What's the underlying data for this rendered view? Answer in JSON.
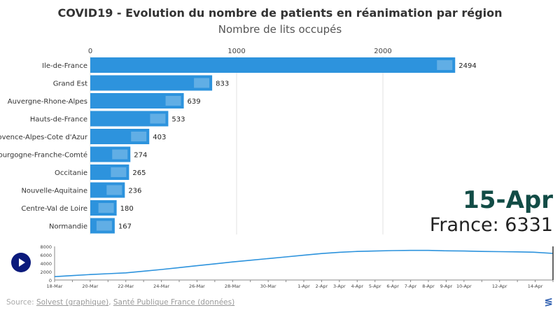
{
  "chart_data": [
    {
      "type": "bar",
      "title": "COVID19 - Evolution du nombre de patients en réanimation par région",
      "subtitle": "Nombre de lits occupés",
      "categories": [
        "Ile-de-France",
        "Grand Est",
        "Auvergne-Rhone-Alpes",
        "Hauts-de-France",
        "Provence-Alpes-Cote d'Azur",
        "Bourgogne-Franche-Comté",
        "Occitanie",
        "Nouvelle-Aquitaine",
        "Centre-Val de Loire",
        "Normandie"
      ],
      "values": [
        2494,
        833,
        639,
        533,
        403,
        274,
        265,
        236,
        180,
        167
      ],
      "xlim": [
        0,
        2500
      ],
      "xticks": [
        0,
        1000,
        2000
      ],
      "grid": true,
      "bar_color": "#2d93dd",
      "current_date": "15-Apr",
      "total_label": "France: 6331"
    },
    {
      "type": "line",
      "x": [
        "18-Mar",
        "19-Mar",
        "20-Mar",
        "21-Mar",
        "22-Mar",
        "23-Mar",
        "24-Mar",
        "25-Mar",
        "26-Mar",
        "27-Mar",
        "28-Mar",
        "29-Mar",
        "30-Mar",
        "31-Mar",
        "1-Apr",
        "2-Apr",
        "3-Apr",
        "4-Apr",
        "5-Apr",
        "6-Apr",
        "7-Apr",
        "8-Apr",
        "9-Apr",
        "10-Apr",
        "11-Apr",
        "12-Apr",
        "13-Apr",
        "14-Apr",
        "15-Apr"
      ],
      "values": [
        800,
        1050,
        1300,
        1500,
        1700,
        2100,
        2500,
        2950,
        3400,
        3850,
        4300,
        4700,
        5100,
        5500,
        5900,
        6300,
        6600,
        6800,
        6900,
        7000,
        7050,
        7050,
        6950,
        6900,
        6800,
        6750,
        6700,
        6600,
        6331
      ],
      "ylim": [
        0,
        8000
      ],
      "yticks": [
        0,
        2000,
        4000,
        6000,
        8000
      ],
      "xtick_labels": [
        "18-Mar",
        "20-Mar",
        "22-Mar",
        "24-Mar",
        "26-Mar",
        "28-Mar",
        "30-Mar",
        "1-Apr",
        "2-Apr",
        "3-Apr",
        "4-Apr",
        "5-Apr",
        "6-Apr",
        "7-Apr",
        "8-Apr",
        "9-Apr",
        "10-Apr",
        "12-Apr",
        "14-Apr"
      ],
      "line_color": "#2d93dd"
    }
  ],
  "controls": {
    "play_icon": "play-icon"
  },
  "footer": {
    "prefix": "Source: ",
    "link1": "Solvest (graphique)",
    "sep": ", ",
    "link2": "Santé Publique France (données)",
    "brand_icon": "flourish-logo-icon"
  }
}
